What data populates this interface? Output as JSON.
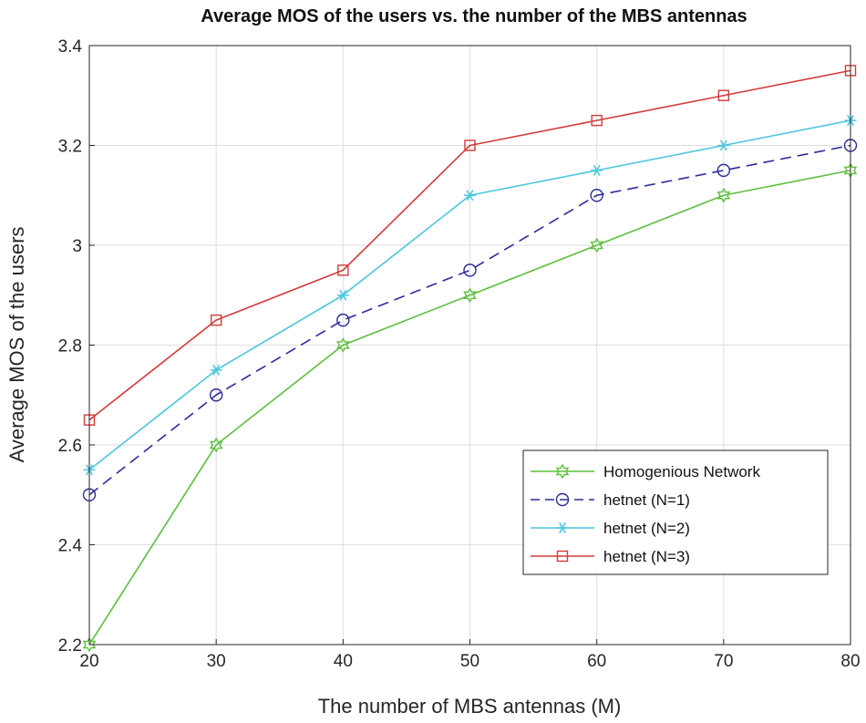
{
  "chart_data": {
    "type": "line",
    "title": "Average MOS of the users vs. the number of the MBS antennas",
    "xlabel": "The number of MBS antennas (M)",
    "ylabel": "Average MOS of the users",
    "x": [
      20,
      30,
      40,
      50,
      60,
      70,
      80
    ],
    "xlim": [
      20,
      80
    ],
    "ylim": [
      2.2,
      3.4
    ],
    "xticks": [
      "20",
      "30",
      "40",
      "50",
      "60",
      "70",
      "80"
    ],
    "yticks": [
      "2.2",
      "2.4",
      "2.6",
      "2.8",
      "3",
      "3.2",
      "3.4"
    ],
    "grid": true,
    "legend_position": "bottom-right",
    "series": [
      {
        "name": "Homogenious Network",
        "values": [
          2.2,
          2.6,
          2.8,
          2.9,
          3.0,
          3.1,
          3.15
        ],
        "color": "#5cbf3c",
        "marker": "hexagram",
        "dash": "solid"
      },
      {
        "name": "hetnet (N=1)",
        "values": [
          2.5,
          2.7,
          2.85,
          2.95,
          3.1,
          3.15,
          3.2
        ],
        "color": "#2b2b9a",
        "marker": "circle",
        "dash": "dashed"
      },
      {
        "name": "hetnet (N=2)",
        "values": [
          2.55,
          2.75,
          2.9,
          3.1,
          3.15,
          3.2,
          3.25
        ],
        "color": "#4cc6dd",
        "marker": "asterisk",
        "dash": "solid"
      },
      {
        "name": "hetnet (N=3)",
        "values": [
          2.65,
          2.85,
          2.95,
          3.2,
          3.25,
          3.3,
          3.35
        ],
        "color": "#d43a3a",
        "marker": "square",
        "dash": "solid"
      }
    ]
  }
}
